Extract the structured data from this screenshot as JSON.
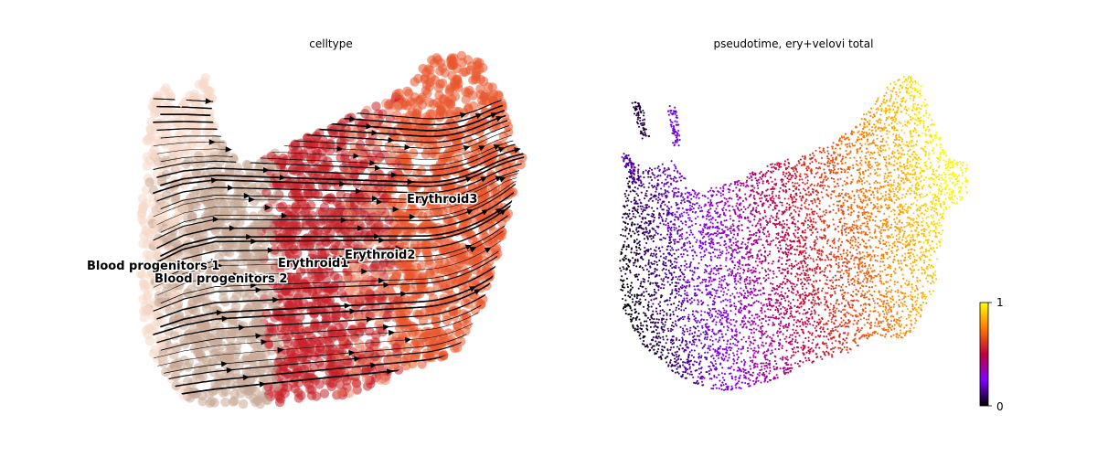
{
  "chart_data": [
    {
      "type": "scatter",
      "title": "celltype",
      "xlabel": "",
      "ylabel": "",
      "grid": false,
      "overlay": "velocity streamlines with arrowheads",
      "colors": {
        "Blood progenitors 1": "#f6d9c9",
        "Blood progenitors 2": "#c9aa98",
        "Erythroid1": "#c8232c",
        "Erythroid2": "#ec8a70",
        "Erythroid3": "#e9562c"
      },
      "series": [
        {
          "name": "Blood progenitors 1"
        },
        {
          "name": "Blood progenitors 2"
        },
        {
          "name": "Erythroid1"
        },
        {
          "name": "Erythroid2"
        },
        {
          "name": "Erythroid3"
        }
      ]
    },
    {
      "type": "scatter",
      "title": "pseudotime, ery+velovi total",
      "xlabel": "",
      "ylabel": "",
      "grid": false,
      "colormap": "gnuplot",
      "colorbar": {
        "min": 0,
        "max": 1,
        "tick_labels": [
          "0",
          "1"
        ],
        "stops": [
          "#000000",
          "#8000ff",
          "#c0003a",
          "#ff7800",
          "#ffff00"
        ]
      }
    }
  ]
}
